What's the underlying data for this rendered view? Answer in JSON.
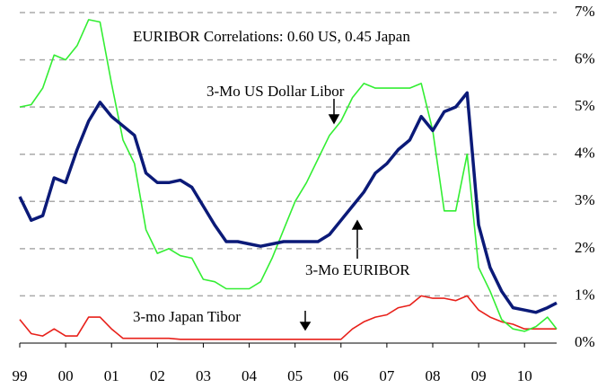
{
  "chart_data": {
    "type": "line",
    "x": [
      1999,
      1999.25,
      1999.5,
      1999.75,
      2000,
      2000.25,
      2000.5,
      2000.75,
      2001,
      2001.25,
      2001.5,
      2001.75,
      2002,
      2002.25,
      2002.5,
      2002.75,
      2003,
      2003.25,
      2003.5,
      2003.75,
      2004,
      2004.25,
      2004.5,
      2004.75,
      2005,
      2005.25,
      2005.5,
      2005.75,
      2006,
      2006.25,
      2006.5,
      2006.75,
      2007,
      2007.25,
      2007.5,
      2007.75,
      2008,
      2008.25,
      2008.5,
      2008.75,
      2009,
      2009.25,
      2009.5,
      2009.75,
      2010,
      2010.25,
      2010.5,
      2010.7
    ],
    "series": [
      {
        "name": "3-Mo US Dollar Libor",
        "color": "#33ee33",
        "width": 1.6,
        "values": [
          5.0,
          5.05,
          5.4,
          6.1,
          6.0,
          6.3,
          6.85,
          6.8,
          5.5,
          4.3,
          3.8,
          2.4,
          1.9,
          2.0,
          1.85,
          1.8,
          1.35,
          1.3,
          1.15,
          1.15,
          1.15,
          1.3,
          1.8,
          2.4,
          3.0,
          3.4,
          3.9,
          4.4,
          4.7,
          5.2,
          5.5,
          5.4,
          5.4,
          5.4,
          5.4,
          5.5,
          4.5,
          2.8,
          2.8,
          4.0,
          1.6,
          1.1,
          0.5,
          0.3,
          0.25,
          0.35,
          0.55,
          0.3
        ]
      },
      {
        "name": "3-Mo EURIBOR",
        "color": "#0b1a78",
        "width": 3.5,
        "values": [
          3.1,
          2.6,
          2.7,
          3.5,
          3.4,
          4.1,
          4.7,
          5.1,
          4.8,
          4.6,
          4.4,
          3.6,
          3.4,
          3.4,
          3.45,
          3.3,
          2.9,
          2.5,
          2.15,
          2.15,
          2.1,
          2.05,
          2.1,
          2.15,
          2.15,
          2.15,
          2.15,
          2.3,
          2.6,
          2.9,
          3.2,
          3.6,
          3.8,
          4.1,
          4.3,
          4.8,
          4.5,
          4.9,
          5.0,
          5.3,
          2.5,
          1.6,
          1.1,
          0.75,
          0.7,
          0.65,
          0.75,
          0.85
        ]
      },
      {
        "name": "3-mo Japan Tibor",
        "color": "#e8201a",
        "width": 1.6,
        "values": [
          0.5,
          0.2,
          0.15,
          0.3,
          0.15,
          0.15,
          0.55,
          0.55,
          0.3,
          0.1,
          0.1,
          0.1,
          0.1,
          0.1,
          0.08,
          0.08,
          0.08,
          0.08,
          0.08,
          0.08,
          0.08,
          0.08,
          0.08,
          0.08,
          0.08,
          0.08,
          0.08,
          0.08,
          0.08,
          0.3,
          0.45,
          0.55,
          0.6,
          0.75,
          0.8,
          1.0,
          0.95,
          0.95,
          0.9,
          1.0,
          0.7,
          0.55,
          0.45,
          0.4,
          0.3,
          0.3,
          0.3,
          0.3
        ]
      }
    ],
    "annotations": [
      "EURIBOR Correlations: 0.60 US, 0.45 Japan"
    ],
    "xlim": [
      1999,
      2010.7
    ],
    "xticks": [
      {
        "value": 1999,
        "label": "99"
      },
      {
        "value": 2000,
        "label": "00"
      },
      {
        "value": 2001,
        "label": "01"
      },
      {
        "value": 2002,
        "label": "02"
      },
      {
        "value": 2003,
        "label": "03"
      },
      {
        "value": 2004,
        "label": "04"
      },
      {
        "value": 2005,
        "label": "05"
      },
      {
        "value": 2006,
        "label": "06"
      },
      {
        "value": 2007,
        "label": "07"
      },
      {
        "value": 2008,
        "label": "08"
      },
      {
        "value": 2009,
        "label": "09"
      },
      {
        "value": 2010,
        "label": "10"
      }
    ],
    "ylim": [
      0,
      7
    ],
    "yticks": [
      {
        "value": 0,
        "label": "0%"
      },
      {
        "value": 1,
        "label": "1%"
      },
      {
        "value": 2,
        "label": "2%"
      },
      {
        "value": 3,
        "label": "3%"
      },
      {
        "value": 4,
        "label": "4%"
      },
      {
        "value": 5,
        "label": "5%"
      },
      {
        "value": 6,
        "label": "6%"
      },
      {
        "value": 7,
        "label": "7%"
      }
    ],
    "grid": true
  }
}
